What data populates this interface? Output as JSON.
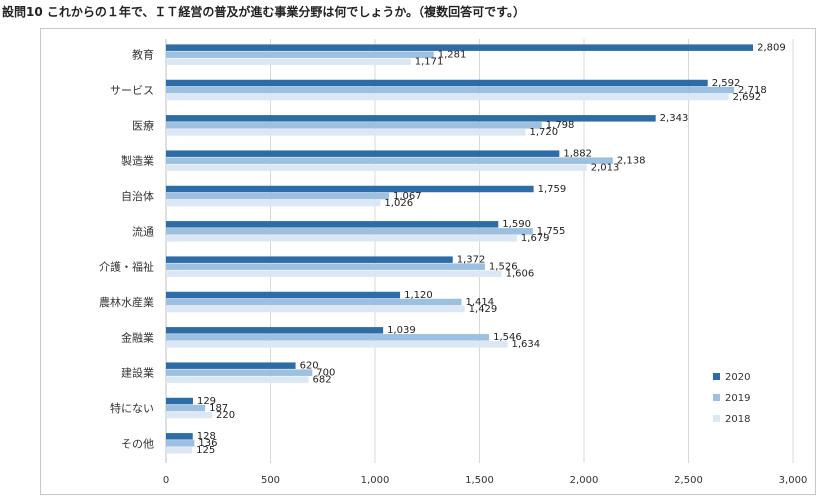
{
  "title": "設問10 これからの１年で、ＩＴ経営の普及が進む事業分野は何でしょうか。（複数回答可です。）",
  "chart_data": {
    "type": "bar",
    "orientation": "horizontal",
    "categories": [
      "教育",
      "サービス",
      "医療",
      "製造業",
      "自治体",
      "流通",
      "介護・福祉",
      "農林水産業",
      "金融業",
      "建設業",
      "特にない",
      "その他"
    ],
    "series": [
      {
        "name": "2020",
        "color": "#2e6ca6",
        "values": [
          2809,
          2592,
          2343,
          1882,
          1759,
          1590,
          1372,
          1120,
          1039,
          620,
          129,
          128
        ]
      },
      {
        "name": "2019",
        "color": "#9dbfe0",
        "values": [
          1281,
          2718,
          1798,
          2138,
          1067,
          1755,
          1526,
          1414,
          1546,
          700,
          187,
          136
        ]
      },
      {
        "name": "2018",
        "color": "#dbe7f5",
        "values": [
          1171,
          2692,
          1720,
          2013,
          1026,
          1679,
          1606,
          1429,
          1634,
          682,
          220,
          125
        ]
      }
    ],
    "xlim": [
      0,
      3000
    ],
    "xticks": [
      0,
      500,
      1000,
      1500,
      2000,
      2500,
      3000
    ],
    "xtick_labels": [
      "0",
      "500",
      "1,000",
      "1,500",
      "2,000",
      "2,500",
      "3,000"
    ],
    "grid": true,
    "legend": {
      "position": "bottom-right",
      "entries": [
        "2020",
        "2019",
        "2018"
      ]
    },
    "data_labels": true,
    "xlabel": "",
    "ylabel": ""
  }
}
